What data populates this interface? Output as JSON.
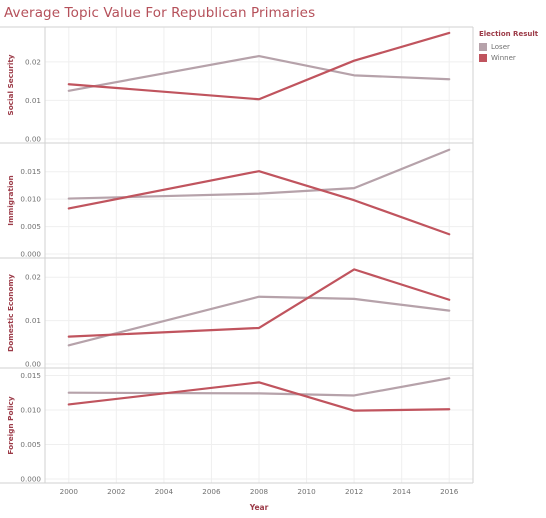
{
  "title": "Average Topic Value For Republican Primaries",
  "legend": {
    "title": "Election Result",
    "items": [
      {
        "label": "Loser",
        "color": "#b6a2aa"
      },
      {
        "label": "Winner",
        "color": "#c0545e"
      }
    ]
  },
  "chart_data": {
    "type": "line",
    "title": "Average Topic Value For Republican Primaries",
    "xlabel": "Year",
    "x_ticks": [
      "2000",
      "2002",
      "2004",
      "2006",
      "2008",
      "2010",
      "2012",
      "2014",
      "2016"
    ],
    "xlim": [
      1999,
      2017
    ],
    "x": [
      2000,
      2008,
      2012,
      2016
    ],
    "grid": true,
    "legend_placement": "right",
    "panels": [
      {
        "ylabel": "Social Security",
        "ylim": [
          0,
          0.028
        ],
        "y_ticks": [
          {
            "v": 0,
            "label": "0.00"
          },
          {
            "v": 0.01,
            "label": "0.01"
          },
          {
            "v": 0.02,
            "label": "0.02"
          }
        ],
        "series": [
          {
            "name": "Loser",
            "values": [
              0.0125,
              0.0215,
              0.0165,
              0.0155
            ]
          },
          {
            "name": "Winner",
            "values": [
              0.0142,
              0.0103,
              0.0203,
              0.0275
            ]
          }
        ]
      },
      {
        "ylabel": "Immigration",
        "ylim": [
          0,
          0.0195
        ],
        "y_ticks": [
          {
            "v": 0,
            "label": "0.000"
          },
          {
            "v": 0.005,
            "label": "0.005"
          },
          {
            "v": 0.01,
            "label": "0.010"
          },
          {
            "v": 0.015,
            "label": "0.015"
          }
        ],
        "series": [
          {
            "name": "Loser",
            "values": [
              0.0101,
              0.011,
              0.012,
              0.019
            ]
          },
          {
            "name": "Winner",
            "values": [
              0.0083,
              0.0151,
              0.0098,
              0.0036
            ]
          }
        ]
      },
      {
        "ylabel": "Domestic Economy",
        "ylim": [
          0,
          0.0235
        ],
        "y_ticks": [
          {
            "v": 0,
            "label": "0.00"
          },
          {
            "v": 0.01,
            "label": "0.01"
          },
          {
            "v": 0.02,
            "label": "0.02"
          }
        ],
        "series": [
          {
            "name": "Loser",
            "values": [
              0.0043,
              0.0155,
              0.015,
              0.0123
            ]
          },
          {
            "name": "Winner",
            "values": [
              0.0063,
              0.0083,
              0.0218,
              0.0148
            ]
          }
        ]
      },
      {
        "ylabel": "Foreign Policy",
        "ylim": [
          0,
          0.0155
        ],
        "y_ticks": [
          {
            "v": 0,
            "label": "0.000"
          },
          {
            "v": 0.005,
            "label": "0.005"
          },
          {
            "v": 0.01,
            "label": "0.010"
          },
          {
            "v": 0.015,
            "label": "0.015"
          }
        ],
        "series": [
          {
            "name": "Loser",
            "values": [
              0.0125,
              0.0124,
              0.0121,
              0.0146
            ]
          },
          {
            "name": "Winner",
            "values": [
              0.0108,
              0.014,
              0.0099,
              0.0101
            ]
          }
        ]
      }
    ]
  }
}
